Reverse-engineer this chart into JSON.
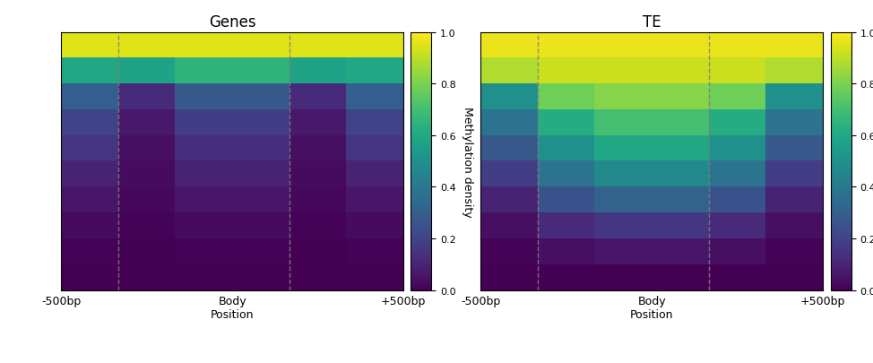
{
  "genes_data": [
    [
      0.95,
      0.95,
      0.95,
      0.95,
      0.95,
      0.95
    ],
    [
      0.6,
      0.58,
      0.65,
      0.65,
      0.58,
      0.6
    ],
    [
      0.3,
      0.12,
      0.28,
      0.28,
      0.12,
      0.3
    ],
    [
      0.2,
      0.07,
      0.18,
      0.18,
      0.07,
      0.2
    ],
    [
      0.15,
      0.04,
      0.13,
      0.13,
      0.04,
      0.15
    ],
    [
      0.1,
      0.03,
      0.1,
      0.1,
      0.03,
      0.1
    ],
    [
      0.06,
      0.02,
      0.06,
      0.06,
      0.02,
      0.06
    ],
    [
      0.03,
      0.01,
      0.03,
      0.03,
      0.01,
      0.03
    ],
    [
      0.01,
      0.0,
      0.01,
      0.01,
      0.0,
      0.01
    ],
    [
      0.0,
      0.0,
      0.0,
      0.0,
      0.0,
      0.0
    ]
  ],
  "te_data": [
    [
      0.97,
      0.97,
      0.97,
      0.97,
      0.97,
      0.97
    ],
    [
      0.88,
      0.92,
      0.92,
      0.92,
      0.92,
      0.88
    ],
    [
      0.5,
      0.78,
      0.82,
      0.82,
      0.78,
      0.5
    ],
    [
      0.38,
      0.62,
      0.7,
      0.7,
      0.62,
      0.38
    ],
    [
      0.28,
      0.5,
      0.6,
      0.6,
      0.5,
      0.28
    ],
    [
      0.18,
      0.38,
      0.48,
      0.48,
      0.38,
      0.18
    ],
    [
      0.1,
      0.25,
      0.32,
      0.32,
      0.25,
      0.1
    ],
    [
      0.04,
      0.12,
      0.16,
      0.16,
      0.12,
      0.04
    ],
    [
      0.01,
      0.04,
      0.06,
      0.06,
      0.04,
      0.01
    ],
    [
      0.0,
      0.0,
      0.0,
      0.0,
      0.0,
      0.0
    ]
  ],
  "titles": [
    "Genes",
    "TE"
  ],
  "colorbar_label": "Methylation density",
  "xtick_labels": [
    "-500bp",
    "Body\nPosition",
    "+500bp"
  ],
  "dashed_line_cols": [
    1,
    4
  ],
  "n_cols": 6,
  "n_rows": 10,
  "vmin": 0.0,
  "vmax": 1.0,
  "cmap": "viridis"
}
